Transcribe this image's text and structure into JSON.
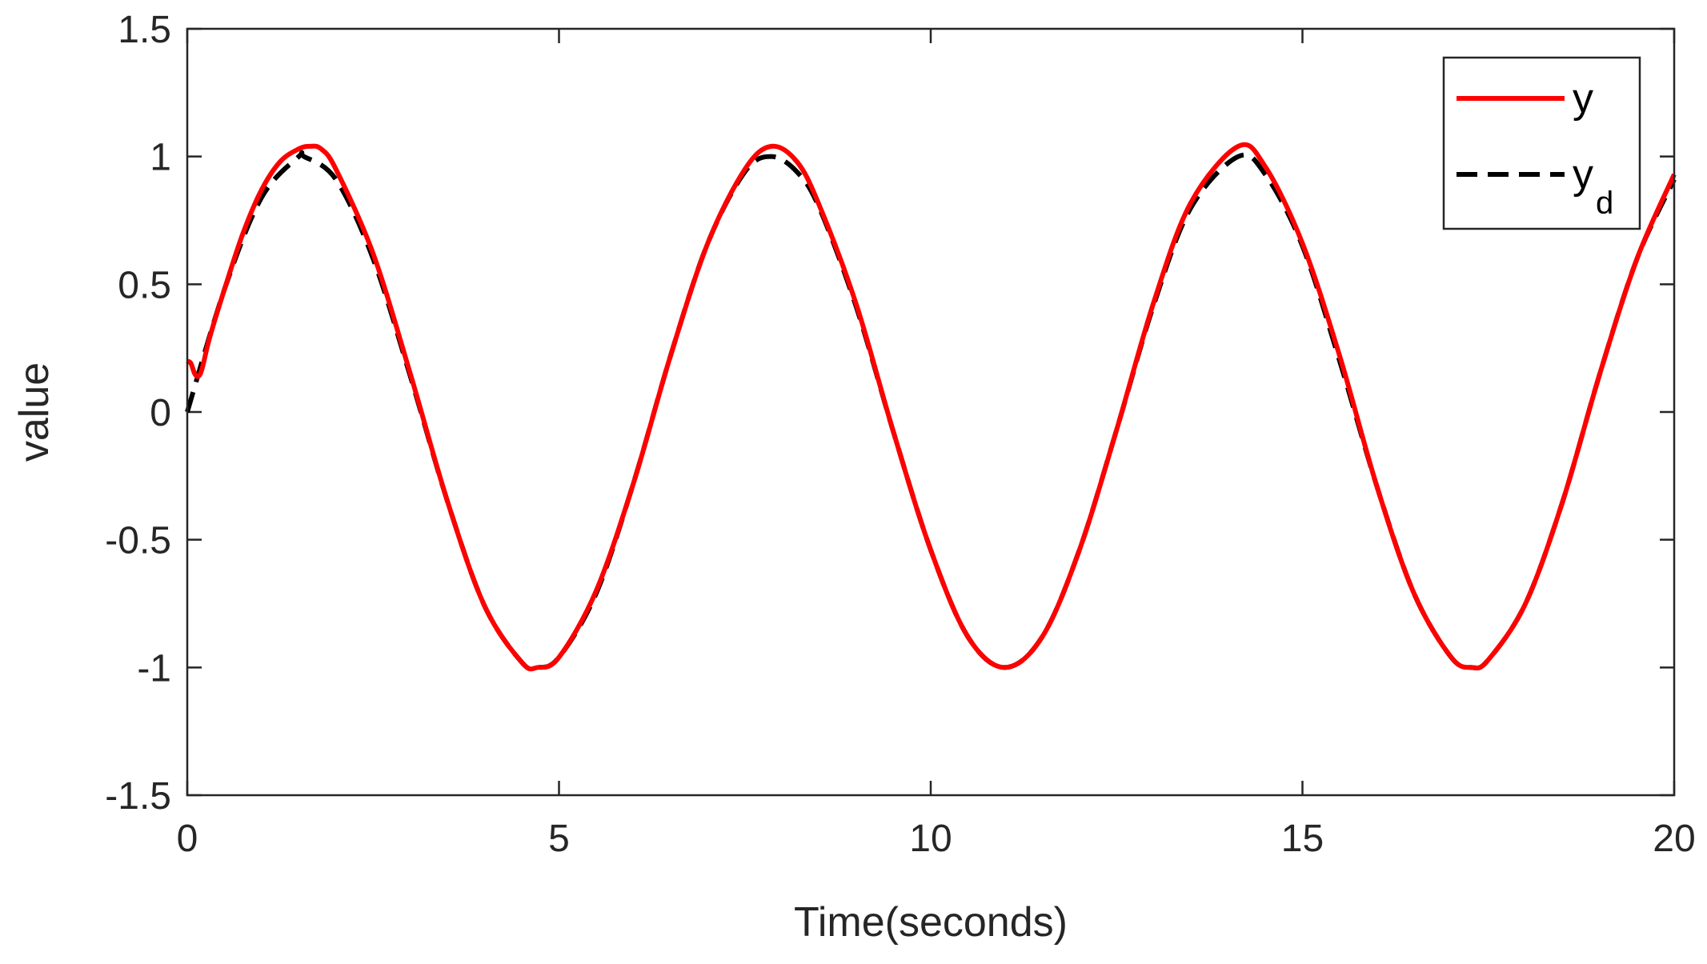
{
  "chart_data": {
    "type": "line",
    "title": "",
    "xlabel": "Time(seconds)",
    "ylabel": "value",
    "xlim": [
      0,
      20
    ],
    "ylim": [
      -1.5,
      1.5
    ],
    "xticks": [
      0,
      5,
      10,
      15,
      20
    ],
    "xtick_labels": [
      "0",
      "5",
      "10",
      "15",
      "20"
    ],
    "yticks": [
      -1.5,
      -1,
      -0.5,
      0,
      0.5,
      1,
      1.5
    ],
    "ytick_labels": [
      "-1.5",
      "-1",
      "-0.5",
      "0",
      "0.5",
      "1",
      "1.5"
    ],
    "grid": false,
    "legend_position": "top-right",
    "series": [
      {
        "name": "y",
        "color": "#ff0000",
        "style": "solid",
        "x": [
          0,
          0.05,
          0.1,
          0.15,
          0.2,
          0.3,
          0.5,
          0.75,
          1.0,
          1.25,
          1.5,
          1.65,
          1.8,
          2.0,
          2.5,
          3.0,
          3.5,
          4.0,
          4.5,
          4.712,
          5.0,
          5.5,
          6.0,
          6.5,
          7.0,
          7.5,
          7.854,
          8.2,
          8.5,
          9.0,
          9.5,
          10.0,
          10.5,
          10.996,
          11.5,
          12.0,
          12.5,
          13.0,
          13.5,
          14.137,
          14.5,
          15.0,
          15.5,
          16.0,
          16.5,
          17.0,
          17.279,
          17.5,
          18.0,
          18.5,
          19.0,
          19.5,
          20.0
        ],
        "y": [
          0.2,
          0.19,
          0.15,
          0.14,
          0.17,
          0.29,
          0.48,
          0.7,
          0.87,
          0.98,
          1.03,
          1.04,
          1.03,
          0.95,
          0.62,
          0.15,
          -0.35,
          -0.76,
          -0.98,
          -1.0,
          -0.96,
          -0.7,
          -0.28,
          0.22,
          0.66,
          0.95,
          1.04,
          0.98,
          0.81,
          0.42,
          -0.08,
          -0.54,
          -0.88,
          -1.0,
          -0.88,
          -0.54,
          -0.07,
          0.43,
          0.82,
          1.04,
          0.96,
          0.66,
          0.22,
          -0.29,
          -0.71,
          -0.96,
          -1.0,
          -0.97,
          -0.75,
          -0.35,
          0.15,
          0.6,
          0.93
        ]
      },
      {
        "name": "y_d",
        "color": "#000000",
        "style": "dashed",
        "x": [
          0,
          0.5,
          1.0,
          1.5,
          1.571,
          2.0,
          2.5,
          3.0,
          3.5,
          4.0,
          4.5,
          4.712,
          5.0,
          5.5,
          6.0,
          6.5,
          7.0,
          7.5,
          7.854,
          8.2,
          8.5,
          9.0,
          9.5,
          10.0,
          10.5,
          10.996,
          11.5,
          12.0,
          12.5,
          13.0,
          13.5,
          14.137,
          14.5,
          15.0,
          15.5,
          16.0,
          16.5,
          17.0,
          17.279,
          17.5,
          18.0,
          18.5,
          19.0,
          19.5,
          20.0
        ],
        "y": [
          0.0,
          0.48,
          0.84,
          1.0,
          1.0,
          0.91,
          0.6,
          0.14,
          -0.35,
          -0.76,
          -0.98,
          -1.0,
          -0.96,
          -0.71,
          -0.28,
          0.22,
          0.66,
          0.94,
          1.0,
          0.94,
          0.8,
          0.41,
          -0.08,
          -0.54,
          -0.88,
          -1.0,
          -0.88,
          -0.54,
          -0.07,
          0.42,
          0.8,
          1.0,
          0.93,
          0.65,
          0.2,
          -0.29,
          -0.71,
          -0.96,
          -1.0,
          -0.97,
          -0.75,
          -0.35,
          0.15,
          0.6,
          0.91
        ]
      }
    ],
    "legend": {
      "entries": [
        {
          "main": "y",
          "sub": ""
        },
        {
          "main": "y",
          "sub": "d"
        }
      ]
    }
  }
}
